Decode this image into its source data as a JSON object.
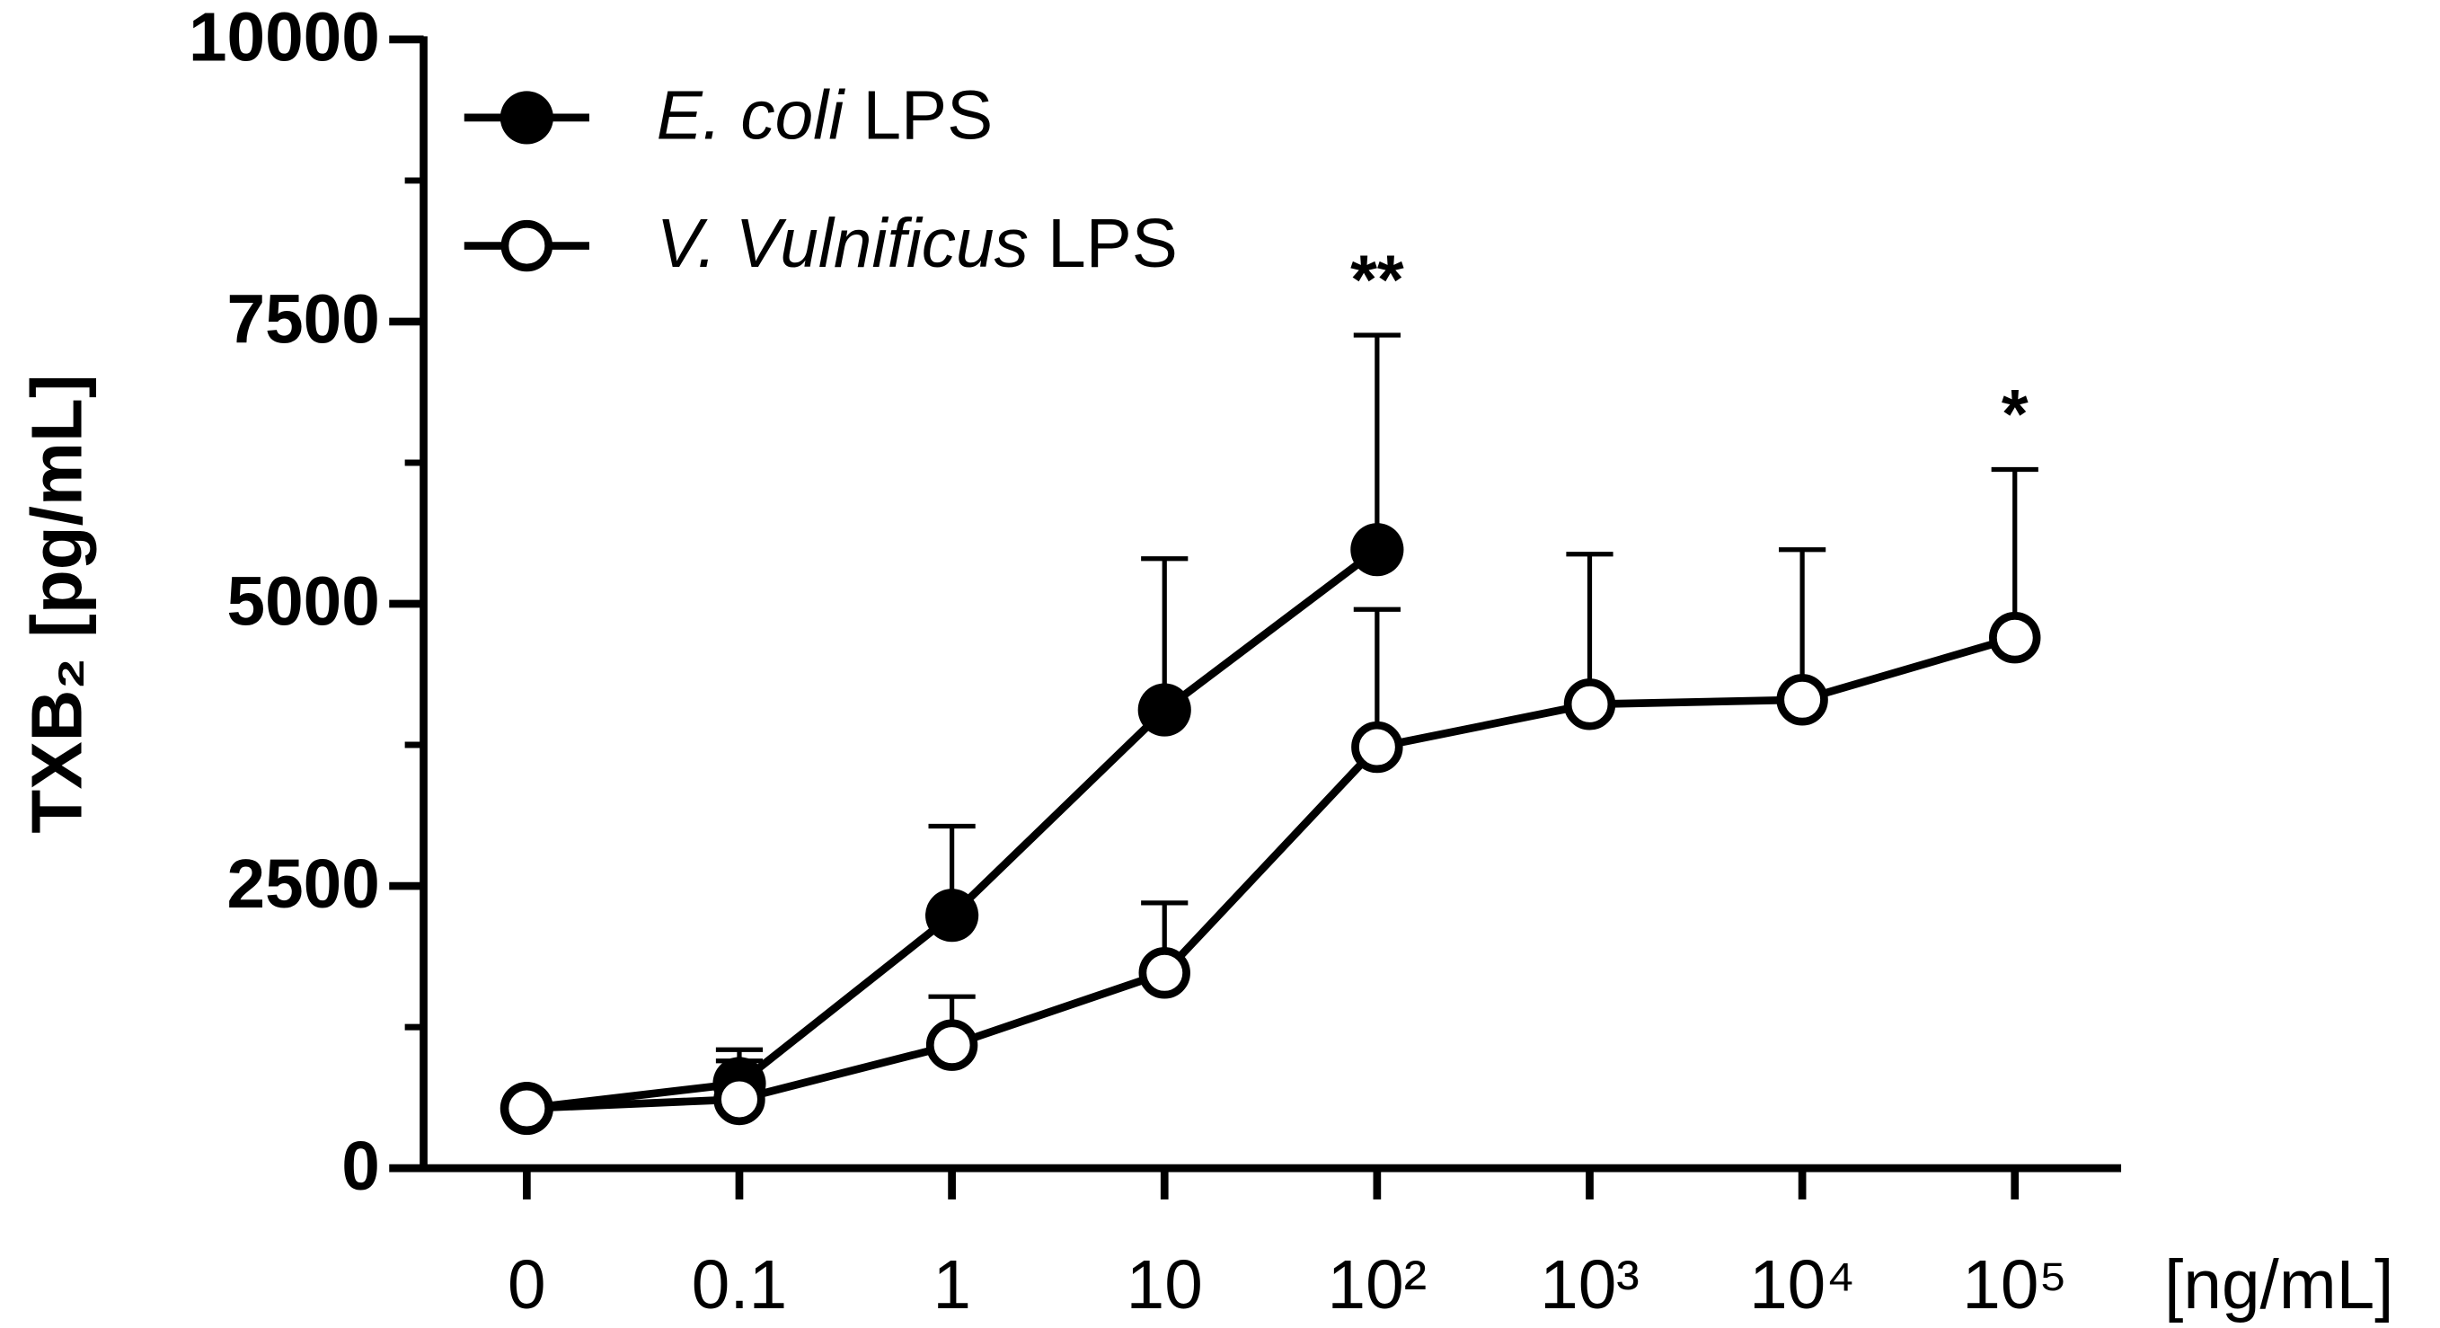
{
  "chart_data": {
    "type": "line",
    "ylabel": "TXB₂ [pg/mL]",
    "xlabel": "[ng/mL]",
    "categories": [
      "0",
      "0.1",
      "1",
      "10",
      "10²",
      "10³",
      "10⁴",
      "10⁵"
    ],
    "ylim": [
      0,
      10000
    ],
    "yticks": [
      0,
      2500,
      5000,
      7500,
      10000
    ],
    "yminorticks": [
      1250,
      3750,
      6250,
      8750
    ],
    "series": [
      {
        "name": "E. coli LPS",
        "emphasis": "E. coli",
        "color": "#000000",
        "marker": "filled",
        "values": [
          530,
          750,
          2240,
          4060,
          5480,
          null,
          null,
          null
        ],
        "errors": [
          null,
          300,
          790,
          1340,
          1900,
          null,
          null,
          null
        ]
      },
      {
        "name": "V. Vulnificus LPS",
        "emphasis": "V. Vulnificus",
        "color": "#000000",
        "marker": "open",
        "values": [
          530,
          610,
          1090,
          1730,
          3730,
          4110,
          4150,
          4700
        ],
        "errors": [
          null,
          340,
          430,
          620,
          1220,
          1330,
          1330,
          1490
        ]
      }
    ],
    "annotations": [
      {
        "text": "**",
        "category": 4,
        "series": 0
      },
      {
        "text": "*",
        "category": 7,
        "series": 1
      }
    ]
  }
}
